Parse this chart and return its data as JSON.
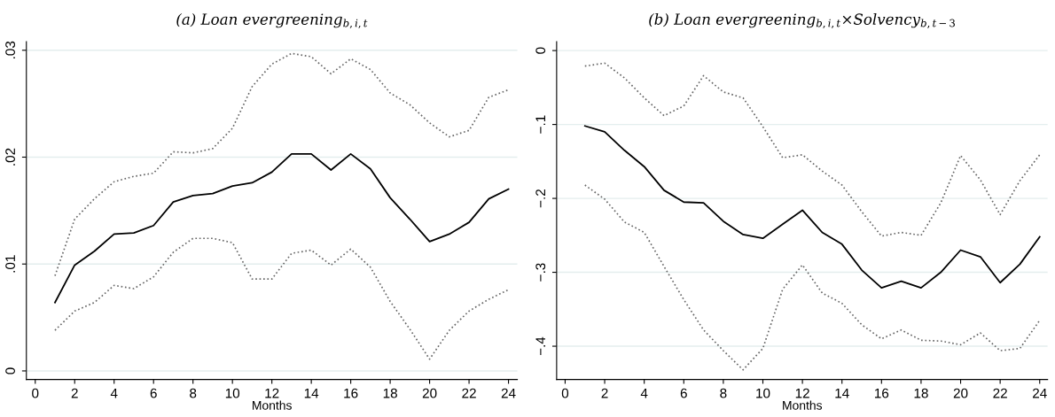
{
  "chart_data": [
    {
      "type": "line",
      "title": "(a) Loan evergreening$_{b,i,t}$",
      "xlabel": "Months",
      "x": [
        1,
        2,
        3,
        4,
        5,
        6,
        7,
        8,
        9,
        10,
        11,
        12,
        13,
        14,
        15,
        16,
        17,
        18,
        19,
        20,
        21,
        22,
        23,
        24
      ],
      "series": [
        {
          "color": "#000000",
          "line_style": "solid",
          "values": [
            0.0064,
            0.0099,
            0.0112,
            0.0128,
            0.0129,
            0.0136,
            0.0158,
            0.0164,
            0.0166,
            0.0173,
            0.0176,
            0.0186,
            0.0203,
            0.0203,
            0.0188,
            0.0203,
            0.0189,
            0.0162,
            0.0142,
            0.0121,
            0.0128,
            0.0139,
            0.0161,
            0.017
          ]
        },
        {
          "color": "#666666",
          "line_style": "dotted",
          "values": [
            0.0089,
            0.0142,
            0.0161,
            0.0177,
            0.0182,
            0.0185,
            0.0205,
            0.0204,
            0.0208,
            0.0227,
            0.0266,
            0.0287,
            0.0297,
            0.0294,
            0.0278,
            0.0292,
            0.0282,
            0.026,
            0.0249,
            0.0232,
            0.0219,
            0.0225,
            0.0256,
            0.0263
          ]
        },
        {
          "color": "#666666",
          "line_style": "dotted",
          "values": [
            0.0038,
            0.0056,
            0.0064,
            0.008,
            0.0077,
            0.0088,
            0.0111,
            0.0124,
            0.0124,
            0.012,
            0.0086,
            0.0086,
            0.011,
            0.0113,
            0.0099,
            0.0114,
            0.0097,
            0.0065,
            0.0039,
            0.0011,
            0.0038,
            0.0056,
            0.0067,
            0.0076
          ]
        }
      ],
      "xlim": [
        -0.45,
        24.45
      ],
      "xticks": [
        0,
        2,
        4,
        6,
        8,
        10,
        12,
        14,
        16,
        18,
        20,
        22,
        24
      ],
      "ylim": [
        -0.0008,
        0.0308
      ],
      "yticks": [
        {
          "value": 0,
          "label": "0"
        },
        {
          "value": 0.01,
          "label": ".01"
        },
        {
          "value": 0.02,
          "label": ".02"
        },
        {
          "value": 0.03,
          "label": ".03"
        }
      ],
      "grid": "y",
      "marker": "none"
    },
    {
      "type": "line",
      "title": "(b) Loan evergreening$_{b,i,t}$×Solvency$_{b,t−3}$",
      "xlabel": "Months",
      "x": [
        1,
        2,
        3,
        4,
        5,
        6,
        7,
        8,
        9,
        10,
        11,
        12,
        13,
        14,
        15,
        16,
        17,
        18,
        19,
        20,
        21,
        22,
        23,
        24
      ],
      "series": [
        {
          "color": "#000000",
          "line_style": "solid",
          "values": [
            -0.102,
            -0.11,
            -0.135,
            -0.157,
            -0.189,
            -0.205,
            -0.206,
            -0.231,
            -0.249,
            -0.254,
            -0.235,
            -0.216,
            -0.246,
            -0.262,
            -0.297,
            -0.321,
            -0.312,
            -0.321,
            -0.3,
            -0.27,
            -0.279,
            -0.314,
            -0.289,
            -0.252
          ]
        },
        {
          "color": "#666666",
          "line_style": "dotted",
          "values": [
            -0.021,
            -0.017,
            -0.037,
            -0.064,
            -0.088,
            -0.075,
            -0.034,
            -0.056,
            -0.064,
            -0.103,
            -0.145,
            -0.141,
            -0.163,
            -0.182,
            -0.218,
            -0.251,
            -0.246,
            -0.25,
            -0.206,
            -0.142,
            -0.175,
            -0.222,
            -0.176,
            -0.141
          ]
        },
        {
          "color": "#666666",
          "line_style": "dotted",
          "values": [
            -0.182,
            -0.201,
            -0.232,
            -0.246,
            -0.292,
            -0.337,
            -0.378,
            -0.406,
            -0.432,
            -0.403,
            -0.323,
            -0.29,
            -0.328,
            -0.342,
            -0.371,
            -0.39,
            -0.378,
            -0.392,
            -0.393,
            -0.398,
            -0.382,
            -0.406,
            -0.403,
            -0.365
          ]
        }
      ],
      "xlim": [
        -0.43,
        24.4
      ],
      "xticks": [
        0,
        2,
        4,
        6,
        8,
        10,
        12,
        14,
        16,
        18,
        20,
        22,
        24
      ],
      "ylim": [
        -0.445,
        0.012
      ],
      "yticks": [
        {
          "value": 0,
          "label": "0"
        },
        {
          "value": -0.1,
          "label": "−.1"
        },
        {
          "value": -0.2,
          "label": "−.2"
        },
        {
          "value": -0.3,
          "label": "−.3"
        },
        {
          "value": -0.4,
          "label": "−.4"
        }
      ],
      "grid": "y",
      "marker": "none"
    }
  ]
}
